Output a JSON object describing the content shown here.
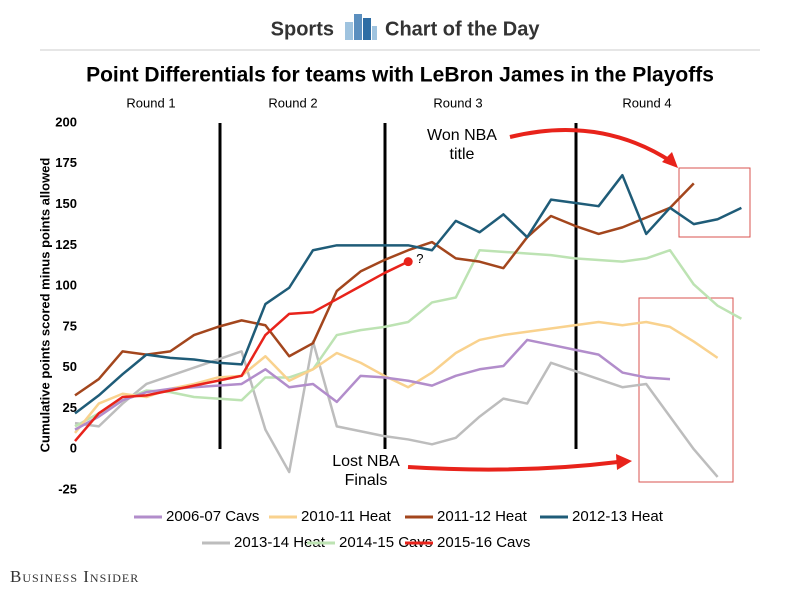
{
  "header": {
    "section": "Sports",
    "series_name": "Chart of the Day"
  },
  "chart_data": {
    "type": "line",
    "title": "Point Differentials for teams with LeBron James in the Playoffs",
    "y_label": "Cumulative points scored minus points allowed",
    "round_labels": [
      "Round 1",
      "Round 2",
      "Round 3",
      "Round 4"
    ],
    "annotations": {
      "won": [
        "Won NBA",
        "title"
      ],
      "lost": [
        "Lost NBA",
        "Finals"
      ],
      "question": "?"
    },
    "ylim": [
      -25,
      200
    ],
    "yticks": [
      200,
      175,
      150,
      125,
      100,
      75,
      50,
      25,
      0,
      -25
    ],
    "grid": false,
    "series": [
      {
        "name": "2006-07 Cavs",
        "color": "#b28dcb",
        "values": [
          12,
          20,
          30,
          35,
          37,
          38,
          39,
          40,
          49,
          38,
          40,
          29,
          45,
          44,
          42,
          39,
          45,
          49,
          51,
          67,
          64,
          61,
          58,
          47,
          44,
          43,
          null,
          null,
          null
        ]
      },
      {
        "name": "2010-11 Heat",
        "color": "#f9d28e",
        "values": [
          10,
          28,
          34,
          32,
          37,
          40,
          44,
          45,
          57,
          42,
          49,
          59,
          53,
          45,
          38,
          47,
          59,
          67,
          70,
          72,
          74,
          76,
          78,
          76,
          78,
          75,
          66,
          56,
          null
        ]
      },
      {
        "name": "2011-12 Heat",
        "color": "#a3461d",
        "values": [
          33,
          43,
          60,
          58,
          60,
          70,
          75,
          79,
          76,
          57,
          65,
          97,
          109,
          116,
          122,
          127,
          117,
          115,
          111,
          130,
          143,
          137,
          132,
          136,
          142,
          148,
          163,
          null,
          null
        ]
      },
      {
        "name": "2012-13 Heat",
        "color": "#1f5c78",
        "values": [
          22,
          33,
          46,
          58,
          56,
          55,
          53,
          52,
          89,
          99,
          122,
          125,
          125,
          125,
          125,
          122,
          140,
          133,
          144,
          130,
          153,
          151,
          149,
          168,
          132,
          148,
          138,
          141,
          148
        ]
      },
      {
        "name": "2013-14 Heat",
        "color": "#bdbdbd",
        "values": [
          16,
          14,
          28,
          40,
          45,
          50,
          55,
          60,
          12,
          -14,
          66,
          14,
          11,
          8,
          6,
          3,
          7,
          20,
          31,
          28,
          53,
          48,
          43,
          38,
          40,
          20,
          0,
          -17,
          null
        ]
      },
      {
        "name": "2014-15 Cavs",
        "color": "#bde3b3",
        "values": [
          14,
          22,
          30,
          36,
          35,
          32,
          31,
          30,
          44,
          44,
          49,
          70,
          73,
          75,
          78,
          90,
          93,
          122,
          121,
          120,
          119,
          117,
          116,
          115,
          117,
          122,
          101,
          88,
          80
        ]
      },
      {
        "name": "2015-16 Cavs",
        "color": "#e8231b",
        "values": [
          5,
          22,
          32,
          33,
          36,
          39,
          42,
          45,
          70,
          83,
          84,
          92,
          100,
          108,
          115,
          null,
          null,
          null,
          null,
          null,
          null,
          null,
          null,
          null,
          null,
          null,
          null,
          null,
          null
        ]
      }
    ]
  },
  "footer": {
    "brand": "Business Insider"
  }
}
